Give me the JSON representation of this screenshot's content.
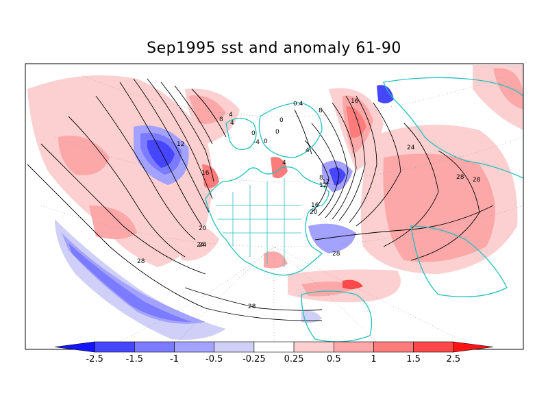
{
  "title": "Sep1995 sst and anomaly 61-90",
  "colorbar": {
    "colors": [
      "#1414ff",
      "#4646ff",
      "#7b7bff",
      "#a3a3ff",
      "#cfcff7",
      "#ffffff",
      "#fcd0d0",
      "#fca8a8",
      "#fc7c7c",
      "#fc4848",
      "#ff1414"
    ],
    "ticks": [
      "-2.5",
      "-1.5",
      "-1",
      "-0.5",
      "-0.25",
      "0.25",
      "0.5",
      "1",
      "1.5",
      "2.5"
    ]
  },
  "contour_labels": [
    "4",
    "8",
    "0",
    "0",
    "0",
    "-4",
    "0.4",
    "8",
    "16",
    "12",
    "16",
    "8",
    "12",
    "16",
    "20",
    "24",
    "24",
    "28",
    "28",
    "28",
    "28",
    "20",
    "24",
    "28",
    "4",
    "4",
    "12",
    "4",
    "0"
  ],
  "colors": {
    "coastline": "#20c0c0",
    "contour": "#000000",
    "grid": "#999999"
  }
}
